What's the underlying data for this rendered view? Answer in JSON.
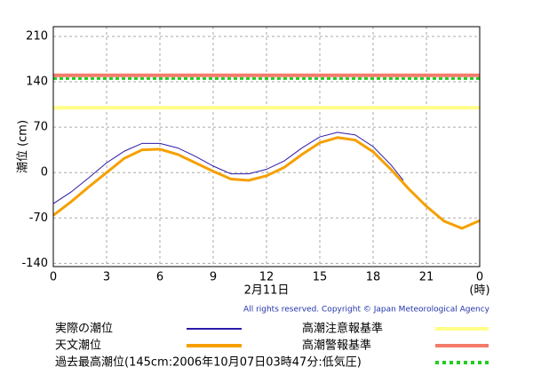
{
  "chart_data": {
    "type": "line",
    "ylabel": "潮位 (cm)",
    "xlabel": "2月11日",
    "xunit": "(時)",
    "copyright": "All rights reserved. Copyright © Japan Meteorological Agency",
    "xlim": [
      0,
      24
    ],
    "ylim": [
      -145,
      225
    ],
    "xticks": [
      0,
      3,
      6,
      9,
      12,
      15,
      18,
      21,
      {
        "value": 24,
        "label": "0"
      }
    ],
    "yticks": [
      -140,
      -70,
      0,
      70,
      140,
      210
    ],
    "grid": true,
    "series": [
      {
        "name": "実際の潮位",
        "color": "#2a1aa8",
        "width": 1,
        "x": [
          0,
          1,
          2,
          3,
          4,
          5,
          6,
          7,
          8,
          9,
          10,
          11,
          12,
          13,
          14,
          15,
          16,
          17,
          18,
          19,
          19.7
        ],
        "values": [
          -48,
          -30,
          -8,
          15,
          33,
          45,
          45,
          38,
          25,
          10,
          -2,
          -2,
          5,
          18,
          38,
          55,
          62,
          58,
          40,
          12,
          -12
        ]
      },
      {
        "name": "天文潮位",
        "color": "#f5a000",
        "width": 3,
        "x": [
          0,
          1,
          2,
          3,
          4,
          5,
          6,
          7,
          8,
          9,
          10,
          11,
          12,
          13,
          14,
          15,
          16,
          17,
          18,
          19,
          20,
          21,
          22,
          23,
          24
        ],
        "values": [
          -66,
          -45,
          -22,
          0,
          22,
          35,
          36,
          28,
          15,
          2,
          -10,
          -12,
          -5,
          8,
          28,
          46,
          54,
          50,
          32,
          5,
          -25,
          -52,
          -75,
          -86,
          -74
        ]
      }
    ],
    "reference_lines": [
      {
        "name": "高潮注意報基準",
        "value": 100,
        "color": "#ffff88",
        "dash": false
      },
      {
        "name": "高潮警報基準",
        "value": 150,
        "color": "#f47a6a",
        "dash": false
      },
      {
        "name": "過去最高潮位(145cm:2006年10月07日03時47分:低気圧)",
        "value": 145,
        "color": "#22cc22",
        "dash": true
      }
    ]
  }
}
